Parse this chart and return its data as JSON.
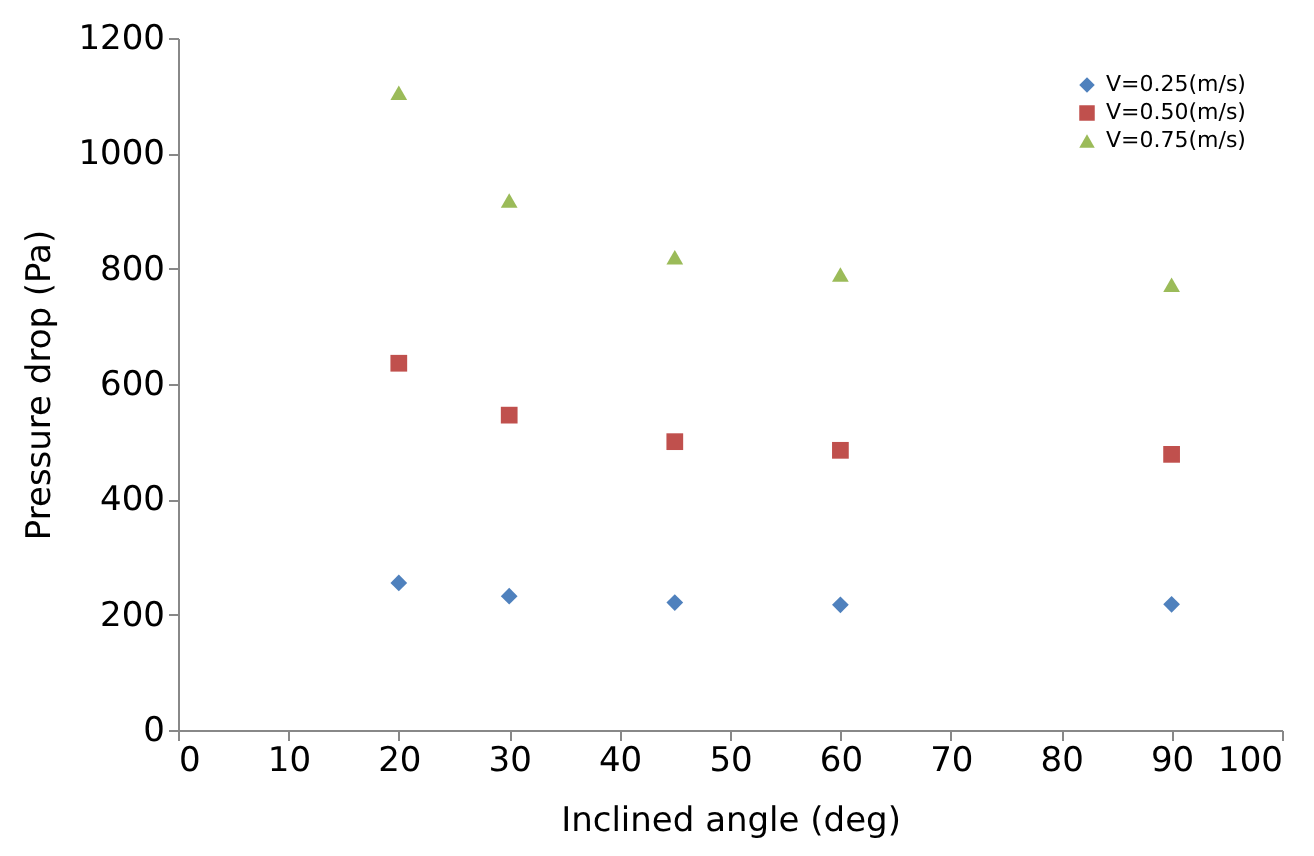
{
  "chart_data": {
    "type": "scatter",
    "xlabel": "Inclined angle (deg)",
    "ylabel": "Pressure drop (Pa)",
    "x": [
      20,
      30,
      45,
      60,
      90
    ],
    "series": [
      {
        "name": "V=0.25(m/s)",
        "color": "#4f81bd",
        "marker": "diamond",
        "values": [
          255,
          232,
          221,
          217,
          218
        ]
      },
      {
        "name": "V=0.50(m/s)",
        "color": "#c0504d",
        "marker": "square",
        "values": [
          636,
          546,
          500,
          485,
          478
        ]
      },
      {
        "name": "V=0.75(m/s)",
        "color": "#9bbb59",
        "marker": "triangle",
        "values": [
          1105,
          918,
          820,
          790,
          772
        ]
      }
    ],
    "xlim": [
      0,
      100
    ],
    "xticks": [
      0,
      10,
      20,
      30,
      40,
      50,
      60,
      70,
      80,
      90,
      100
    ],
    "ylim": [
      0,
      1200
    ],
    "yticks": [
      0,
      200,
      400,
      600,
      800,
      1000,
      1200
    ],
    "grid": false,
    "legend": "top right"
  }
}
